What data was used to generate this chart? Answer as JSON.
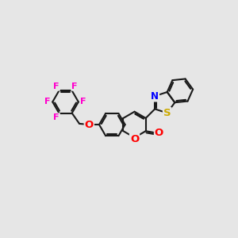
{
  "bg_color": "#e6e6e6",
  "bond_color": "#1a1a1a",
  "bond_width": 1.5,
  "atom_colors": {
    "F": "#ff00cc",
    "O": "#ff0000",
    "N": "#0000ff",
    "S": "#ccaa00"
  },
  "font_size": 8.5,
  "fig_size": [
    3.0,
    3.0
  ],
  "dpi": 100
}
